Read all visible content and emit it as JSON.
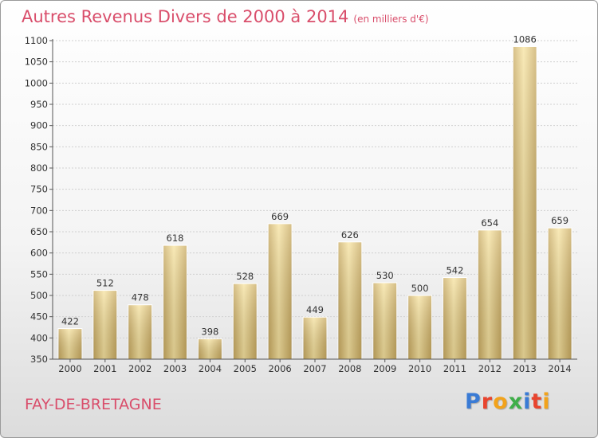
{
  "header": {
    "title": "Autres Revenus Divers de 2000 à 2014",
    "unit": "(en milliers d'€)"
  },
  "footer": {
    "city": "FAY-DE-BRETAGNE",
    "logo": "Proxiti",
    "logo_colors": [
      "#3a7bd5",
      "#e8442e",
      "#f2a31b",
      "#3fae49",
      "#3a7bd5",
      "#e8442e",
      "#f2a31b"
    ]
  },
  "colors": {
    "bar_light": "#f7e3a0",
    "bar_dark": "#c8a95f",
    "title": "#d94e6b"
  },
  "chart_data": {
    "type": "bar",
    "categories": [
      "2000",
      "2001",
      "2002",
      "2003",
      "2004",
      "2005",
      "2006",
      "2007",
      "2008",
      "2009",
      "2010",
      "2011",
      "2012",
      "2013",
      "2014"
    ],
    "values": [
      422,
      512,
      478,
      618,
      398,
      528,
      669,
      449,
      626,
      530,
      500,
      542,
      654,
      1086,
      659
    ],
    "ylim": [
      350,
      1100
    ],
    "yticks": [
      350,
      400,
      450,
      500,
      550,
      600,
      650,
      700,
      750,
      800,
      850,
      900,
      950,
      1000,
      1050,
      1100
    ],
    "grid": true
  }
}
